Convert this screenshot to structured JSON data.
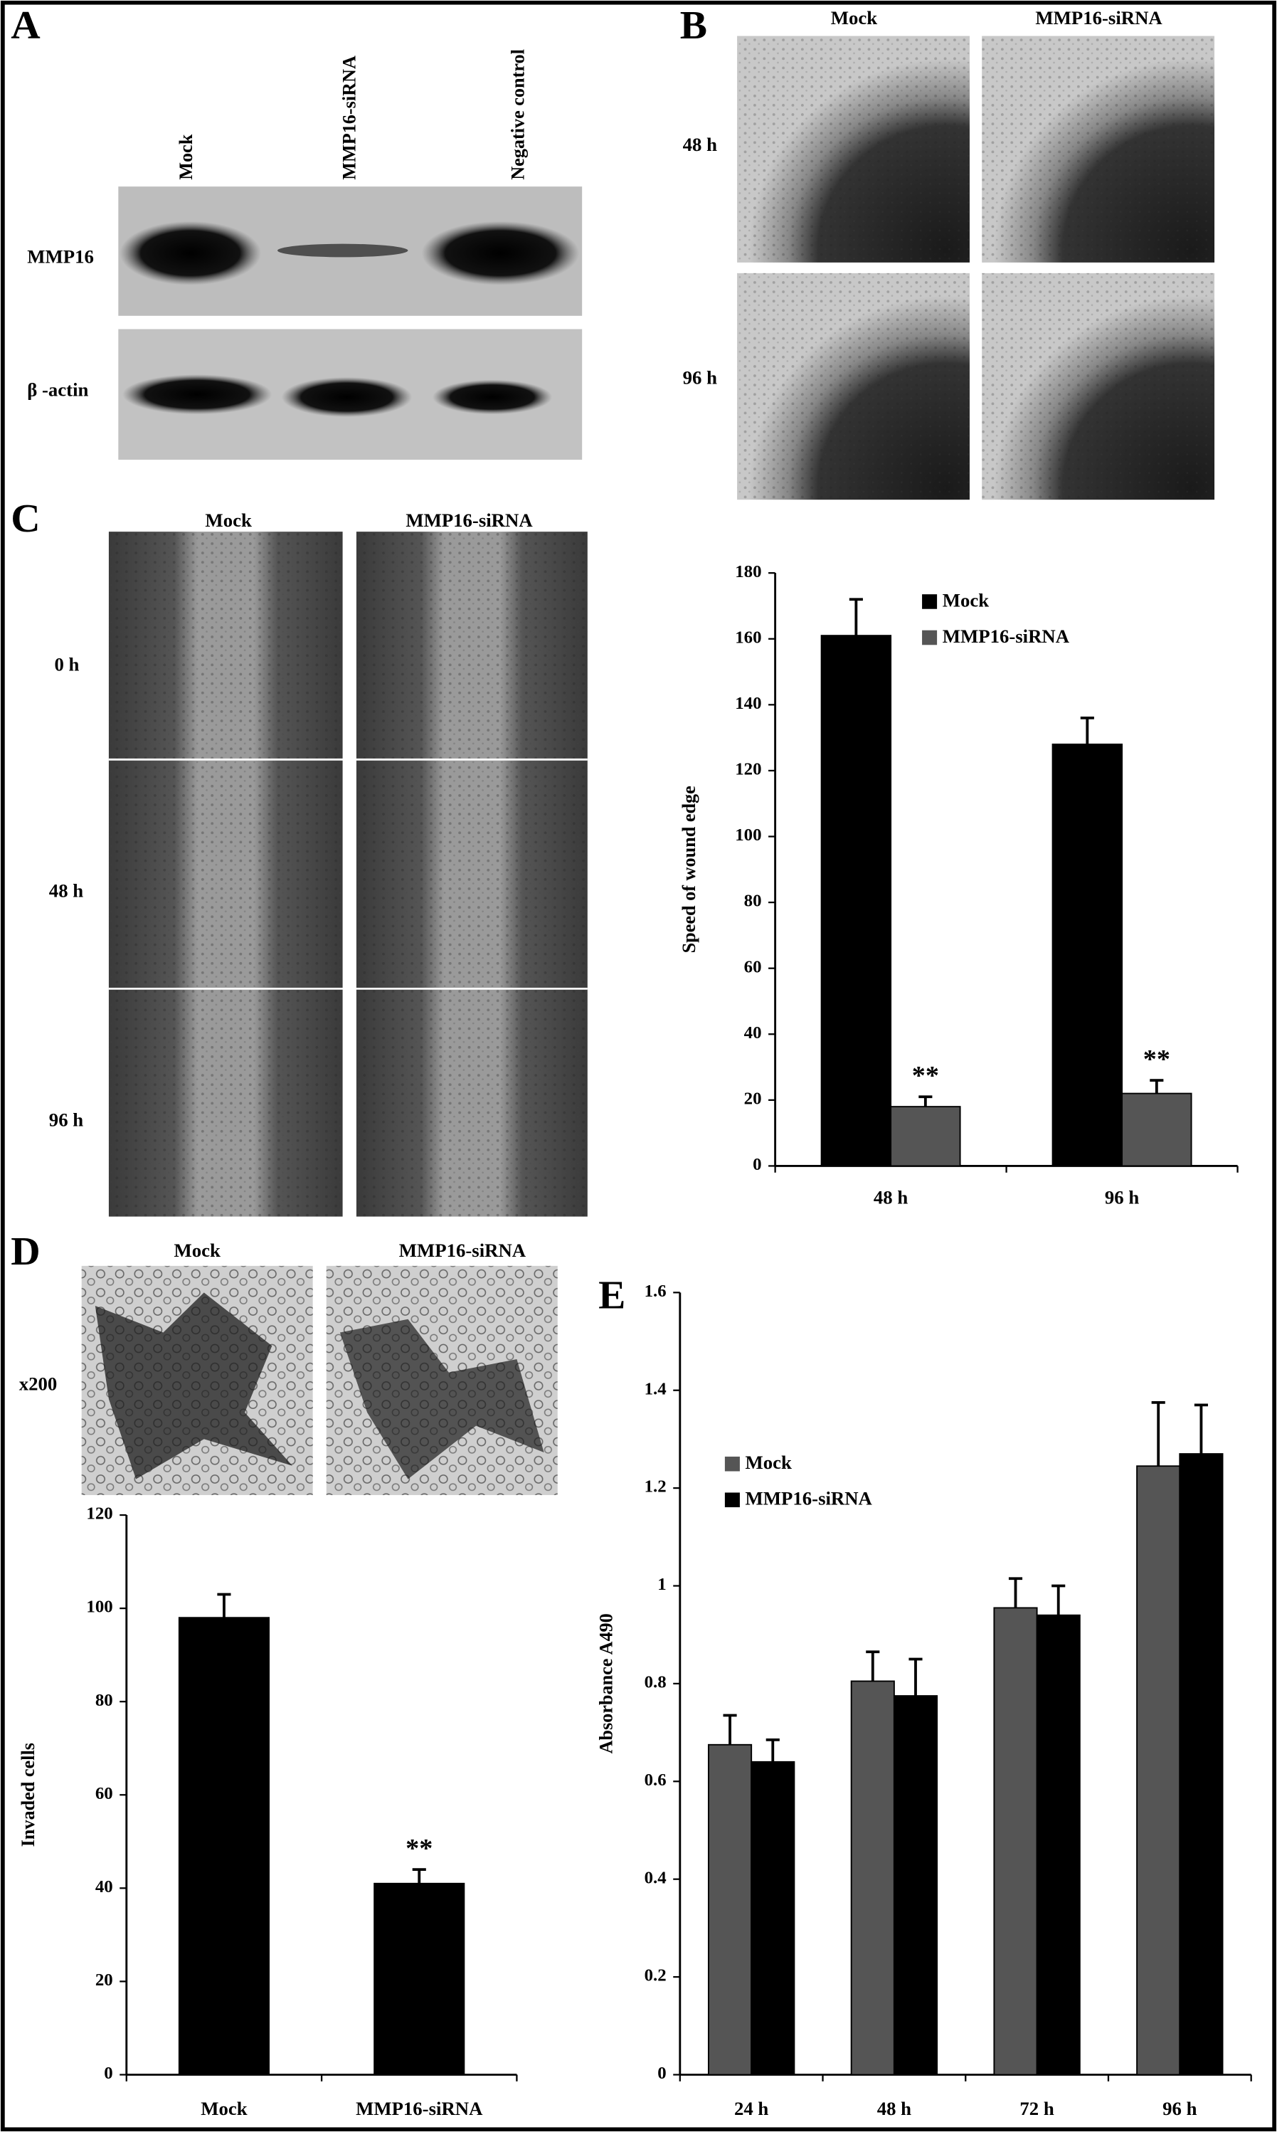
{
  "figure": {
    "panel_labels": [
      "A",
      "B",
      "C",
      "D",
      "E"
    ],
    "blot": {
      "lanes": [
        "Mock",
        "MMP16-siRNA",
        "Negative control"
      ],
      "rows": [
        "MMP16",
        "β -actin"
      ]
    },
    "migration": {
      "columns": [
        "Mock",
        "MMP16-siRNA"
      ],
      "rows": [
        "48 h",
        "96 h"
      ]
    },
    "wound": {
      "columns": [
        "Mock",
        "MMP16-siRNA"
      ],
      "rows": [
        "0 h",
        "48 h",
        "96 h"
      ]
    },
    "invasion": {
      "columns": [
        "Mock",
        "MMP16-siRNA"
      ],
      "magnification": "x200"
    }
  },
  "chart_data": [
    {
      "type": "bar",
      "ylabel": "Speed of wound edge",
      "categories": [
        "48 h",
        "96 h"
      ],
      "series": [
        {
          "name": "Mock",
          "color": "#000000",
          "values": [
            161,
            128
          ],
          "errors": [
            11,
            8
          ]
        },
        {
          "name": "MMP16-siRNA",
          "color": "#555555",
          "values": [
            18,
            22
          ],
          "errors": [
            3,
            4
          ],
          "annotations": [
            "**",
            "**"
          ]
        }
      ],
      "ylim": [
        0,
        180
      ],
      "yticks": [
        0,
        20,
        40,
        60,
        80,
        100,
        120,
        140,
        160,
        180
      ],
      "legend": "upper right",
      "grid": false
    },
    {
      "type": "bar",
      "ylabel": "Invaded cells",
      "categories": [
        "Mock",
        "MMP16-siRNA"
      ],
      "values": [
        98,
        41
      ],
      "errors": [
        5,
        3
      ],
      "annotations": [
        null,
        "**"
      ],
      "color": "#000000",
      "ylim": [
        0,
        120
      ],
      "yticks": [
        0,
        20,
        40,
        60,
        80,
        100,
        120
      ],
      "grid": false
    },
    {
      "type": "bar",
      "ylabel": "Absorbance A490",
      "categories": [
        "24 h",
        "48 h",
        "72 h",
        "96 h"
      ],
      "series": [
        {
          "name": "Mock",
          "color": "#555555",
          "values": [
            0.675,
            0.805,
            0.955,
            1.245
          ],
          "errors": [
            0.06,
            0.06,
            0.06,
            0.13
          ]
        },
        {
          "name": "MMP16-siRNA",
          "color": "#000000",
          "values": [
            0.64,
            0.775,
            0.94,
            1.27
          ],
          "errors": [
            0.045,
            0.075,
            0.06,
            0.1
          ]
        }
      ],
      "ylim": [
        0,
        1.6
      ],
      "yticks": [
        0,
        0.2,
        0.4,
        0.6,
        0.8,
        1,
        1.2,
        1.4,
        1.6
      ],
      "legend": "center left",
      "grid": false
    }
  ]
}
